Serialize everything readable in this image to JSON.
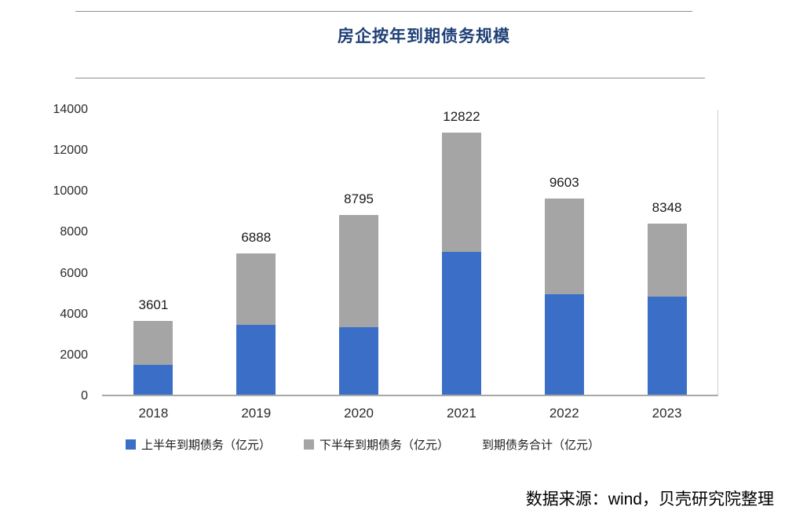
{
  "title": "房企按年到期债务规模",
  "source_note": "数据来源：wind，贝壳研究院整理",
  "colors": {
    "first_half_bar": "#3b6fc7",
    "second_half_bar": "#a5a5a5",
    "title_text": "#1f4077",
    "axis_line": "#a8a8a8"
  },
  "legend": {
    "first_half_label": "上半年到期债务（亿元）",
    "second_half_label": "下半年到期债务（亿元）",
    "total_label": "到期债务合计（亿元）"
  },
  "chart_data": {
    "type": "bar",
    "stacked": true,
    "title": "房企按年到期债务规模",
    "categories": [
      "2018",
      "2019",
      "2020",
      "2021",
      "2022",
      "2023"
    ],
    "series": [
      {
        "name": "上半年到期债务（亿元）",
        "color": "#3b6fc7",
        "values": [
          1450,
          3400,
          3300,
          7000,
          4900,
          4800
        ]
      },
      {
        "name": "下半年到期债务（亿元）",
        "color": "#a5a5a5",
        "values": [
          2151,
          3488,
          5495,
          5822,
          4703,
          3548
        ]
      }
    ],
    "totals": [
      3601,
      6888,
      8795,
      12822,
      9603,
      8348
    ],
    "total_series_label": "到期债务合计（亿元）",
    "xlabel": "",
    "ylabel": "",
    "ylim": [
      0,
      14000
    ],
    "yticks": [
      0,
      2000,
      4000,
      6000,
      8000,
      10000,
      12000,
      14000
    ],
    "grid": false,
    "legend_position": "bottom"
  }
}
